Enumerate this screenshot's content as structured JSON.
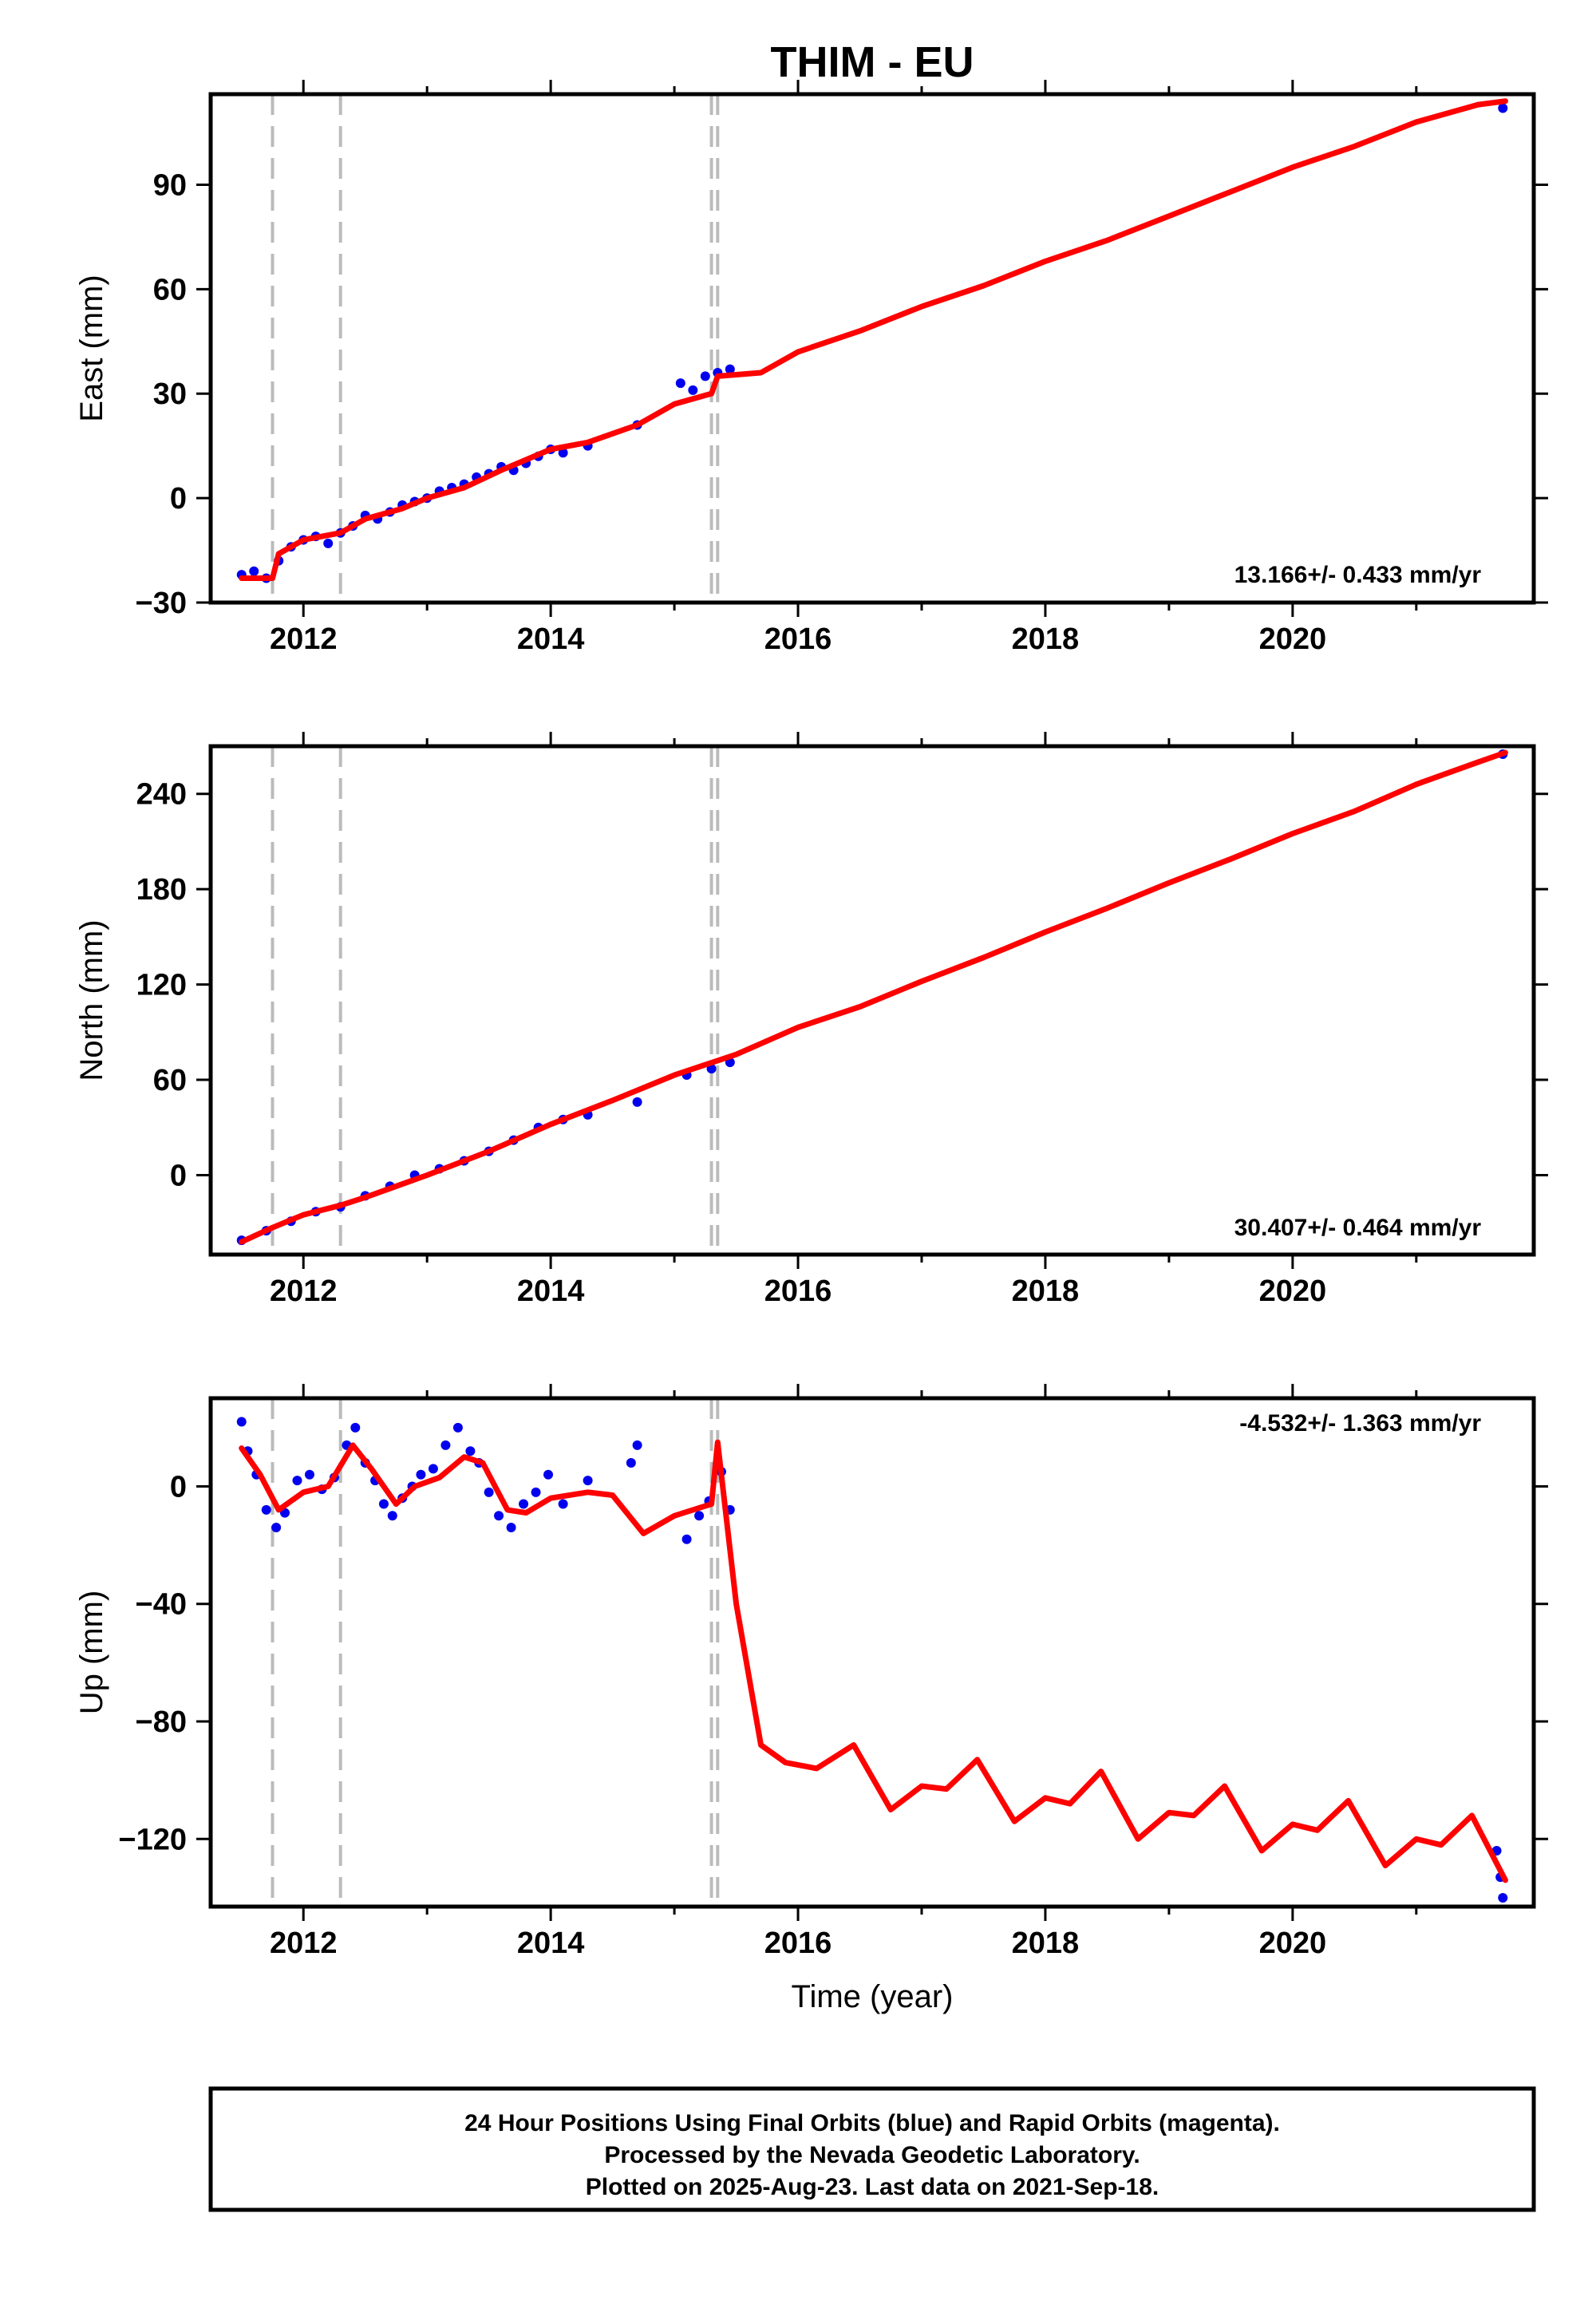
{
  "title": "THIM - EU",
  "footer": {
    "lines": [
      "24 Hour Positions Using Final Orbits (blue) and Rapid Orbits (magenta).",
      "Processed by the Nevada Geodetic Laboratory.",
      "Plotted on 2025-Aug-23. Last data on 2021-Sep-18."
    ]
  },
  "colors": {
    "data": "#0000ee",
    "model": "#ff0000",
    "steps": "#bbbbbb",
    "frame": "#000000"
  },
  "chart_data": [
    {
      "type": "scatter",
      "ylabel": "East (mm)",
      "xlabel": "",
      "rate": "13.166+/- 0.433 mm/yr",
      "xlim": [
        2011.25,
        2021.95
      ],
      "ylim": [
        -30,
        116
      ],
      "xticks": [
        2012,
        2014,
        2016,
        2018,
        2020
      ],
      "yticks": [
        -30,
        0,
        30,
        60,
        90
      ],
      "step_dates": [
        2011.75,
        2012.3,
        2015.3,
        2015.35
      ],
      "series": [
        {
          "kind": "model",
          "x": [
            2011.5,
            2011.75,
            2011.8,
            2012.0,
            2012.3,
            2012.5,
            2012.8,
            2013.0,
            2013.3,
            2013.6,
            2014.0,
            2014.3,
            2014.7,
            2015.0,
            2015.3,
            2015.35,
            2015.7,
            2016.0,
            2016.5,
            2017.0,
            2017.5,
            2018.0,
            2018.5,
            2019.0,
            2019.5,
            2020.0,
            2020.5,
            2021.0,
            2021.5,
            2021.72
          ],
          "y": [
            -23,
            -23,
            -16,
            -12,
            -10,
            -6,
            -3,
            0,
            3,
            8,
            14,
            16,
            21,
            27,
            30,
            35,
            36,
            42,
            48,
            55,
            61,
            68,
            74,
            81,
            88,
            95,
            101,
            108,
            113,
            114
          ]
        },
        {
          "kind": "observed",
          "x": [
            2011.5,
            2011.6,
            2011.7,
            2011.8,
            2011.9,
            2012.0,
            2012.1,
            2012.2,
            2012.3,
            2012.4,
            2012.5,
            2012.6,
            2012.7,
            2012.8,
            2012.9,
            2013.0,
            2013.1,
            2013.2,
            2013.3,
            2013.4,
            2013.5,
            2013.6,
            2013.7,
            2013.8,
            2013.9,
            2014.0,
            2014.1,
            2014.3,
            2014.7,
            2015.05,
            2015.15,
            2015.25,
            2015.35,
            2015.45,
            2021.7
          ],
          "y": [
            -22,
            -21,
            -23,
            -18,
            -14,
            -12,
            -11,
            -13,
            -10,
            -8,
            -5,
            -6,
            -4,
            -2,
            -1,
            0,
            2,
            3,
            4,
            6,
            7,
            9,
            8,
            10,
            12,
            14,
            13,
            15,
            21,
            33,
            31,
            35,
            36,
            37,
            112
          ]
        }
      ]
    },
    {
      "type": "scatter",
      "ylabel": "North (mm)",
      "xlabel": "",
      "rate": "30.407+/- 0.464 mm/yr",
      "xlim": [
        2011.25,
        2021.95
      ],
      "ylim": [
        -50,
        270
      ],
      "xticks": [
        2012,
        2014,
        2016,
        2018,
        2020
      ],
      "yticks": [
        0,
        60,
        120,
        180,
        240
      ],
      "step_dates": [
        2011.75,
        2012.3,
        2015.3,
        2015.35
      ],
      "series": [
        {
          "kind": "model",
          "x": [
            2011.5,
            2011.75,
            2012.0,
            2012.3,
            2012.5,
            2013.0,
            2013.5,
            2014.0,
            2014.5,
            2015.0,
            2015.5,
            2016.0,
            2016.5,
            2017.0,
            2017.5,
            2018.0,
            2018.5,
            2019.0,
            2019.5,
            2020.0,
            2020.5,
            2021.0,
            2021.5,
            2021.72
          ],
          "y": [
            -42,
            -33,
            -25,
            -19,
            -14,
            0,
            15,
            32,
            47,
            63,
            76,
            93,
            106,
            122,
            137,
            153,
            168,
            184,
            199,
            215,
            229,
            246,
            260,
            266
          ]
        },
        {
          "kind": "observed",
          "x": [
            2011.5,
            2011.7,
            2011.9,
            2012.1,
            2012.3,
            2012.5,
            2012.7,
            2012.9,
            2013.1,
            2013.3,
            2013.5,
            2013.7,
            2013.9,
            2014.1,
            2014.3,
            2014.7,
            2015.1,
            2015.3,
            2015.45,
            2021.7
          ],
          "y": [
            -41,
            -35,
            -29,
            -23,
            -20,
            -13,
            -7,
            0,
            4,
            9,
            15,
            22,
            30,
            35,
            38,
            46,
            63,
            67,
            71,
            265
          ]
        }
      ]
    },
    {
      "type": "scatter",
      "ylabel": "Up (mm)",
      "xlabel": "Time (year)",
      "rate": "-4.532+/- 1.363 mm/yr",
      "xlim": [
        2011.25,
        2021.95
      ],
      "ylim": [
        -143,
        30
      ],
      "xticks": [
        2012,
        2014,
        2016,
        2018,
        2020
      ],
      "yticks": [
        -120,
        -80,
        -40,
        0
      ],
      "step_dates": [
        2011.75,
        2012.3,
        2015.3,
        2015.35
      ],
      "series": [
        {
          "kind": "model",
          "x": [
            2011.5,
            2011.65,
            2011.8,
            2012.0,
            2012.2,
            2012.4,
            2012.55,
            2012.75,
            2012.9,
            2013.1,
            2013.3,
            2013.45,
            2013.65,
            2013.8,
            2014.0,
            2014.3,
            2014.5,
            2014.75,
            2015.0,
            2015.15,
            2015.3,
            2015.35,
            2015.5,
            2015.7,
            2015.9,
            2016.15,
            2016.45,
            2016.75,
            2017.0,
            2017.2,
            2017.45,
            2017.75,
            2018.0,
            2018.2,
            2018.45,
            2018.75,
            2019.0,
            2019.2,
            2019.45,
            2019.75,
            2020.0,
            2020.2,
            2020.45,
            2020.75,
            2021.0,
            2021.2,
            2021.45,
            2021.72
          ],
          "y": [
            13,
            4,
            -8,
            -2,
            0,
            14,
            6,
            -6,
            0,
            3,
            10,
            8,
            -8,
            -9,
            -4,
            -2,
            -3,
            -16,
            -10,
            -8,
            -6,
            15,
            -40,
            -88,
            -94,
            -96,
            -88,
            -110,
            -102,
            -103,
            -93,
            -114,
            -106,
            -108,
            -97,
            -120,
            -111,
            -112,
            -102,
            -124,
            -115,
            -117,
            -107,
            -129,
            -120,
            -122,
            -112,
            -134
          ]
        },
        {
          "kind": "observed",
          "x": [
            2011.5,
            2011.55,
            2011.62,
            2011.7,
            2011.78,
            2011.85,
            2011.95,
            2012.05,
            2012.15,
            2012.25,
            2012.35,
            2012.42,
            2012.5,
            2012.58,
            2012.65,
            2012.72,
            2012.8,
            2012.88,
            2012.95,
            2013.05,
            2013.15,
            2013.25,
            2013.35,
            2013.42,
            2013.5,
            2013.58,
            2013.68,
            2013.78,
            2013.88,
            2013.98,
            2014.1,
            2014.3,
            2014.65,
            2014.7,
            2015.1,
            2015.2,
            2015.28,
            2015.38,
            2015.45,
            2021.65,
            2021.68,
            2021.7
          ],
          "y": [
            22,
            12,
            4,
            -8,
            -14,
            -9,
            2,
            4,
            -1,
            3,
            14,
            20,
            8,
            2,
            -6,
            -10,
            -4,
            0,
            4,
            6,
            14,
            20,
            12,
            8,
            -2,
            -10,
            -14,
            -6,
            -2,
            4,
            -6,
            2,
            8,
            14,
            -18,
            -10,
            -5,
            5,
            -8,
            -124,
            -133,
            -140
          ]
        }
      ]
    }
  ]
}
